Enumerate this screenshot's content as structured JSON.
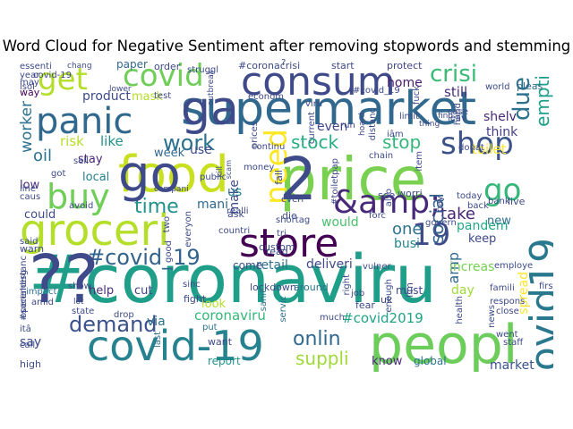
{
  "title": "Word Cloud for Negative Sentiment after removing stopwords and stemming",
  "words": [
    {
      "text": "#coronaviru",
      "color": "#1f9e89"
    },
    {
      "text": "price",
      "color": "#7ad151"
    },
    {
      "text": "food",
      "color": "#c8e020"
    },
    {
      "text": "supermarket",
      "color": "#31688e"
    },
    {
      "text": "store",
      "color": "#440154"
    },
    {
      "text": "groceri",
      "color": "#b5de2b"
    },
    {
      "text": "covid-19",
      "color": "#26828e"
    },
    {
      "text": "peopl",
      "color": "#6ccd5a"
    },
    {
      "text": "consum",
      "color": "#3e4a89"
    },
    {
      "text": "panic",
      "color": "#31688e"
    },
    {
      "text": "buy",
      "color": "#6ece58"
    },
    {
      "text": "&amp;",
      "color": "#482878"
    },
    {
      "text": "get",
      "color": "#b5de2b"
    },
    {
      "text": "covid",
      "color": "#6ece58"
    },
    {
      "text": "shop",
      "color": "#3b528b"
    },
    {
      "text": "go",
      "color": "#35b779"
    },
    {
      "text": "#covid19",
      "color": "#2a788e"
    },
    {
      "text": "need",
      "color": "#fde725"
    },
    {
      "text": "19",
      "color": "#3e4a89"
    },
    {
      "text": "#covid_19",
      "color": "#33638d"
    },
    {
      "text": "demand",
      "color": "#3b528b"
    },
    {
      "text": "time",
      "color": "#21918c"
    },
    {
      "text": "work",
      "color": "#2c728e"
    },
    {
      "text": "stock",
      "color": "#26ad81"
    },
    {
      "text": "stop",
      "color": "#35b779"
    },
    {
      "text": "crisi",
      "color": "#3bbb75"
    },
    {
      "text": "due",
      "color": "#2c728e"
    },
    {
      "text": "empti",
      "color": "#1f9e89"
    },
    {
      "text": "onlin",
      "color": "#31688e"
    },
    {
      "text": "suppli",
      "color": "#a0da39"
    },
    {
      "text": "coronaviru",
      "color": "#35b779"
    },
    {
      "text": "#covid2019",
      "color": "#20a386"
    },
    {
      "text": "amp",
      "color": "#31688e"
    },
    {
      "text": "say",
      "color": "#3e4a89"
    },
    {
      "text": "via",
      "color": "#2c728e"
    },
    {
      "text": "help",
      "color": "#472d7b"
    },
    {
      "text": "cut",
      "color": "#414487"
    },
    {
      "text": "retail",
      "color": "#2e6f8e"
    },
    {
      "text": "deliveri",
      "color": "#3e4a89"
    },
    {
      "text": "busi",
      "color": "#26828e"
    },
    {
      "text": "pandem",
      "color": "#22a884"
    },
    {
      "text": "increas",
      "color": "#75d054"
    },
    {
      "text": "one",
      "color": "#2c728e"
    },
    {
      "text": "would",
      "color": "#4ac16d"
    },
    {
      "text": "take",
      "color": "#482475"
    },
    {
      "text": "keep",
      "color": "#3e4a89"
    },
    {
      "text": "new",
      "color": "#2c728e"
    },
    {
      "text": "toilet",
      "color": "#fde725"
    },
    {
      "text": "shelv",
      "color": "#482878"
    },
    {
      "text": "think",
      "color": "#433e85"
    },
    {
      "text": "still",
      "color": "#472d7b"
    },
    {
      "text": "home",
      "color": "#481a6c"
    },
    {
      "text": "even",
      "color": "#414487"
    },
    {
      "text": "mask",
      "color": "#b5de2b"
    },
    {
      "text": "product",
      "color": "#3e4a89"
    },
    {
      "text": "worker",
      "color": "#2c728e"
    },
    {
      "text": "oil",
      "color": "#2c728e"
    },
    {
      "text": "risk",
      "color": "#b5de2b"
    },
    {
      "text": "like",
      "color": "#21918c"
    },
    {
      "text": "stay",
      "color": "#482878"
    },
    {
      "text": "local",
      "color": "#26828e"
    },
    {
      "text": "week",
      "color": "#31688e"
    },
    {
      "text": "use",
      "color": "#3e4a89"
    },
    {
      "text": "low",
      "color": "#472d7b"
    },
    {
      "text": "could",
      "color": "#3e4a89"
    },
    {
      "text": "mani",
      "color": "#31688e"
    },
    {
      "text": "make",
      "color": "#3e4a89"
    },
    {
      "text": "come",
      "color": "#3e4a89"
    },
    {
      "text": "look",
      "color": "#b5de2b"
    },
    {
      "text": "market",
      "color": "#3b528b"
    },
    {
      "text": "know",
      "color": "#482878"
    },
    {
      "text": "global",
      "color": "#2c728e"
    },
    {
      "text": "report",
      "color": "#21918c"
    },
    {
      "text": "social",
      "color": "#33638d"
    },
    {
      "text": "spread",
      "color": "#fde725"
    },
    {
      "text": "day",
      "color": "#a0da39"
    },
    {
      "text": "us",
      "color": "#26828e"
    },
    {
      "text": "paper",
      "color": "#31688e"
    },
    {
      "text": "order",
      "color": "#3e4a89"
    },
    {
      "text": "#coronacrisi",
      "color": "#3e4a89"
    },
    {
      "text": "start",
      "color": "#3e4a89"
    },
    {
      "text": "protect",
      "color": "#414487"
    },
    {
      "text": "essenti",
      "color": "#3e4a89"
    },
    {
      "text": "chang",
      "color": "#3e4a89"
    },
    {
      "text": "year",
      "color": "#3e4a89"
    },
    {
      "text": "may",
      "color": "#3e4a89"
    },
    {
      "text": "way",
      "color": "#440154"
    },
    {
      "text": "pleas",
      "color": "#31688e"
    },
    {
      "text": "world",
      "color": "#3e4a89"
    },
    {
      "text": "fight",
      "color": "#3e4a89"
    },
    {
      "text": "lockdown",
      "color": "#3e4a89"
    },
    {
      "text": "sinc",
      "color": "#3e4a89"
    },
    {
      "text": "put",
      "color": "#2c728e"
    },
    {
      "text": "want",
      "color": "#3e4a89"
    },
    {
      "text": "sanit",
      "color": "#2c728e"
    },
    {
      "text": "servic",
      "color": "#2c728e"
    },
    {
      "text": "around",
      "color": "#2c728e"
    },
    {
      "text": "much",
      "color": "#3e4a89"
    },
    {
      "text": "last",
      "color": "#2c728e"
    },
    {
      "text": "drop",
      "color": "#3e4a89"
    },
    {
      "text": "state",
      "color": "#3e4a89"
    },
    {
      "text": "itâ",
      "color": "#3e4a89"
    },
    {
      "text": "call",
      "color": "#3e4a89"
    },
    {
      "text": "high",
      "color": "#3e4a89"
    },
    {
      "text": "impact",
      "color": "#2c728e"
    },
    {
      "text": "amid",
      "color": "#3e4a89"
    },
    {
      "text": "emerg",
      "color": "#3e4a89"
    },
    {
      "text": "close",
      "color": "#3e4a89"
    },
    {
      "text": "staff",
      "color": "#3e4a89"
    },
    {
      "text": "went",
      "color": "#3e4a89"
    },
    {
      "text": "famili",
      "color": "#3e4a89"
    },
    {
      "text": "respons",
      "color": "#3e4a89"
    },
    {
      "text": "first",
      "color": "#3e4a89"
    },
    {
      "text": "news",
      "color": "#3e4a89"
    },
    {
      "text": "health",
      "color": "#3e4a89"
    },
    {
      "text": "employe",
      "color": "#3e4a89"
    },
    {
      "text": "i'm",
      "color": "#3e4a89"
    },
    {
      "text": "right",
      "color": "#3e4a89"
    },
    {
      "text": "job",
      "color": "#3e4a89"
    },
    {
      "text": "enough",
      "color": "#3e4a89"
    },
    {
      "text": "forc",
      "color": "#3e4a89"
    },
    {
      "text": "govern",
      "color": "#3e4a89"
    },
    {
      "text": "bank",
      "color": "#3e4a89"
    },
    {
      "text": "live",
      "color": "#3e4a89"
    },
    {
      "text": "back",
      "color": "#3e4a89"
    },
    {
      "text": "today",
      "color": "#3e4a89"
    },
    {
      "text": "pay",
      "color": "#3e4a89"
    },
    {
      "text": "worri",
      "color": "#3e4a89"
    },
    {
      "text": "see",
      "color": "#3e4a89"
    },
    {
      "text": "also",
      "color": "#3e4a89"
    },
    {
      "text": "#toiletpap",
      "color": "#3e4a89"
    },
    {
      "text": "everi",
      "color": "#3e4a89"
    },
    {
      "text": "fall",
      "color": "#3e4a89"
    },
    {
      "text": "shortag",
      "color": "#3e4a89"
    },
    {
      "text": "tri",
      "color": "#3e4a89"
    },
    {
      "text": "custom",
      "color": "#3e4a89"
    },
    {
      "text": "die",
      "color": "#3e4a89"
    },
    {
      "text": "read",
      "color": "#3e4a89"
    },
    {
      "text": "ask",
      "color": "#3e4a89"
    },
    {
      "text": "countri",
      "color": "#3e4a89"
    },
    {
      "text": "realli",
      "color": "#3e4a89"
    },
    {
      "text": "everyon",
      "color": "#3e4a89"
    },
    {
      "text": "good",
      "color": "#3e4a89"
    },
    {
      "text": "two",
      "color": "#3e4a89"
    },
    {
      "text": "compani",
      "color": "#3e4a89"
    },
    {
      "text": "public",
      "color": "#3e4a89"
    },
    {
      "text": "continu",
      "color": "#3e4a89"
    },
    {
      "text": "money",
      "color": "#3e4a89"
    },
    {
      "text": "kill",
      "color": "#3e4a89"
    },
    {
      "text": "scam",
      "color": "#3e4a89"
    },
    {
      "text": "outbreak",
      "color": "#3e4a89"
    },
    {
      "text": "struggl",
      "color": "#3e4a89"
    },
    {
      "text": "prices",
      "color": "#3e4a89"
    },
    {
      "text": "econom",
      "color": "#3e4a89"
    },
    {
      "text": "viru",
      "color": "#3e4a89"
    },
    {
      "text": "current",
      "color": "#3e4a89"
    },
    {
      "text": "run",
      "color": "#3e4a89"
    },
    {
      "text": "#covid_19",
      "color": "#3e4a89"
    },
    {
      "text": "hoard",
      "color": "#3e4a89"
    },
    {
      "text": "distanc",
      "color": "#3e4a89"
    },
    {
      "text": "limit",
      "color": "#3e4a89"
    },
    {
      "text": "iâm",
      "color": "#3e4a89"
    },
    {
      "text": "fuck",
      "color": "#3e4a89"
    },
    {
      "text": "thing",
      "color": "#3e4a89"
    },
    {
      "text": "case",
      "color": "#3e4a89"
    },
    {
      "text": "find",
      "color": "#3e4a89"
    },
    {
      "text": "leav",
      "color": "#3e4a89"
    },
    {
      "text": "hand",
      "color": "#3e4a89"
    },
    {
      "text": "chain",
      "color": "#3e4a89"
    },
    {
      "text": "item",
      "color": "#3e4a89"
    },
    {
      "text": "got",
      "color": "#3e4a89"
    },
    {
      "text": "sell",
      "color": "#3e4a89"
    },
    {
      "text": "line",
      "color": "#3e4a89"
    },
    {
      "text": "caus",
      "color": "#3e4a89"
    },
    {
      "text": "avoid",
      "color": "#3e4a89"
    },
    {
      "text": "said",
      "color": "#3e4a89"
    },
    {
      "text": "warn",
      "color": "#3e4a89"
    },
    {
      "text": "#socialdistanc",
      "color": "#3e4a89"
    },
    {
      "text": "open",
      "color": "#3e4a89"
    },
    {
      "text": "show",
      "color": "#3e4a89"
    },
    {
      "text": "lot",
      "color": "#3e4a89"
    },
    {
      "text": "isol",
      "color": "#3e4a89"
    },
    {
      "text": "lower",
      "color": "#3e4a89"
    },
    {
      "text": "test",
      "color": "#3e4a89"
    },
    {
      "text": "covid-19",
      "color": "#3e4a89"
    },
    {
      "text": "uk",
      "color": "#3e4a89"
    },
    {
      "text": "fear",
      "color": "#3e4a89"
    },
    {
      "text": "vulner",
      "color": "#3e4a89"
    },
    {
      "text": "must",
      "color": "#3e4a89"
    },
    {
      "text": "donat",
      "color": "#3e4a89"
    },
    {
      "text": "?",
      "color": "#3e4a89"
    },
    {
      "text": "??",
      "color": "#3e4a89"
    },
    {
      "text": "2",
      "color": "#3e4a89"
    },
    {
      "text": "go",
      "color": "#3e4a89"
    },
    {
      "text": "ga",
      "color": "#3e4a89"
    }
  ]
}
